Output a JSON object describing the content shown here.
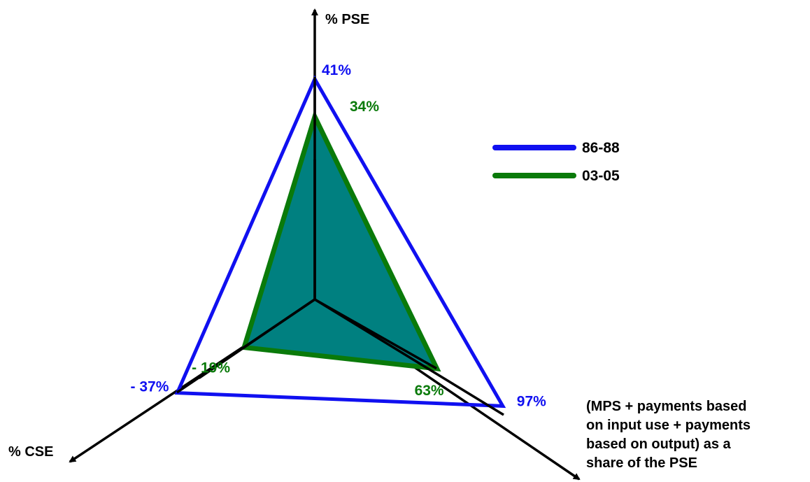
{
  "chart_data": {
    "type": "radar",
    "axes": [
      {
        "key": "pse",
        "label_lines": [
          "% PSE"
        ]
      },
      {
        "key": "share",
        "label_lines": [
          "(MPS + payments based",
          "on input use + payments",
          "based on output)  as a",
          "share of the PSE"
        ]
      },
      {
        "key": "cse",
        "label_lines": [
          "% CSE"
        ]
      }
    ],
    "series": [
      {
        "name": "86-88",
        "color": "#1010f0",
        "values": {
          "pse": 41,
          "share": 97,
          "cse": -37
        },
        "value_labels": {
          "pse": "41%",
          "share": "97%",
          "cse": "- 37%"
        }
      },
      {
        "name": "03-05",
        "color": "#0a7a0a",
        "fill": "#008080",
        "values": {
          "pse": 34,
          "share": 63,
          "cse": -19
        },
        "value_labels": {
          "pse": "34%",
          "share": "63%",
          "cse": "- 19%"
        }
      }
    ],
    "legend": "right",
    "grid": false
  }
}
